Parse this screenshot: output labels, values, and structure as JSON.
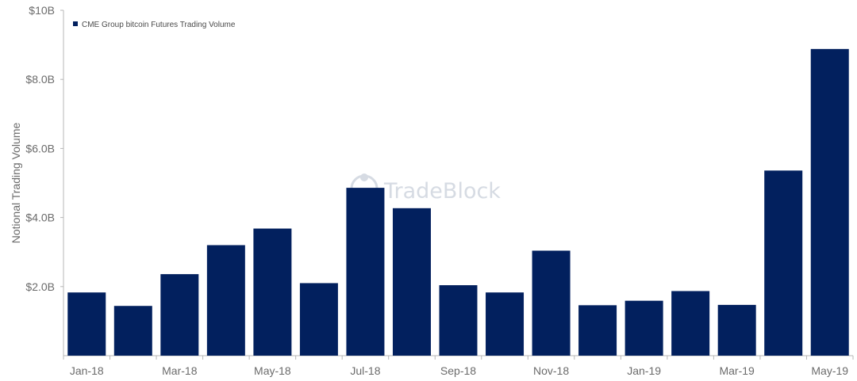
{
  "chart_data": {
    "type": "bar",
    "title": "",
    "xlabel": "",
    "ylabel": "Notional Trading Volume",
    "ylim": [
      0,
      10
    ],
    "y_unit": "billion USD",
    "y_ticks": [
      2,
      4,
      6,
      8,
      10
    ],
    "y_tick_labels": [
      "$2.0B",
      "$4.0B",
      "$6.0B",
      "$8.0B",
      "$10B"
    ],
    "categories": [
      "Jan-18",
      "Feb-18",
      "Mar-18",
      "Apr-18",
      "May-18",
      "Jun-18",
      "Jul-18",
      "Aug-18",
      "Sep-18",
      "Oct-18",
      "Nov-18",
      "Dec-18",
      "Jan-19",
      "Feb-19",
      "Mar-19",
      "Apr-19",
      "May-19"
    ],
    "x_tick_labels": [
      "Jan-18",
      "",
      "Mar-18",
      "",
      "May-18",
      "",
      "Jul-18",
      "",
      "Sep-18",
      "",
      "Nov-18",
      "",
      "Jan-19",
      "",
      "Mar-19",
      "",
      "May-19"
    ],
    "series": [
      {
        "name": "CME Group bitcoin Futures Trading Volume",
        "color": "#02205e",
        "values": [
          1.83,
          1.44,
          2.36,
          3.2,
          3.68,
          2.1,
          4.86,
          4.27,
          2.04,
          1.83,
          3.04,
          1.46,
          1.59,
          1.87,
          1.47,
          5.36,
          8.88
        ]
      }
    ],
    "legend_position": "top-left",
    "grid": false
  },
  "watermark": {
    "text": "TradeBlock",
    "icon": "tradeblock-logo-icon"
  },
  "colors": {
    "bar": "#02205e",
    "axis": "#b7b7b7",
    "text": "#6b6b6b"
  }
}
